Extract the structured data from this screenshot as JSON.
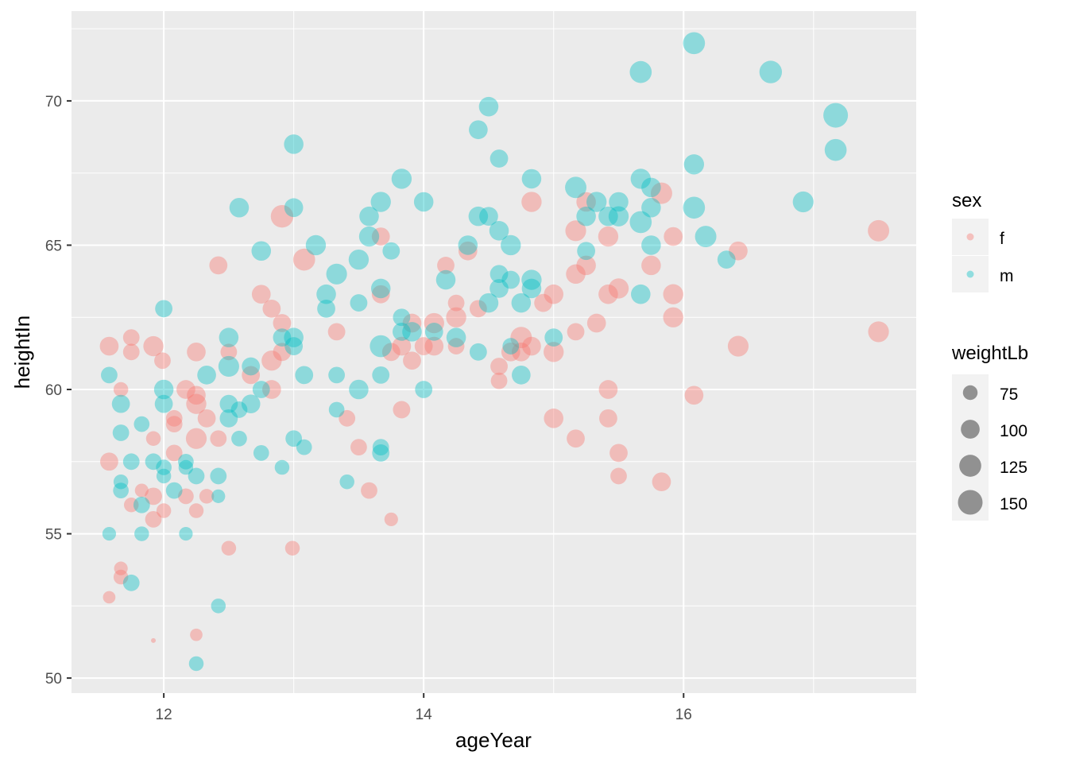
{
  "chart_data": {
    "type": "scatter",
    "xlabel": "ageYear",
    "ylabel": "heightIn",
    "xlim": [
      11.29,
      17.79
    ],
    "ylim": [
      49.48,
      73.11
    ],
    "x_ticks": [
      12,
      14,
      16
    ],
    "y_ticks": [
      50,
      55,
      60,
      65,
      70
    ],
    "grid": true,
    "legend_placement": "right",
    "color_legend": {
      "title": "sex",
      "entries": [
        {
          "label": "f",
          "color": "#F8766D"
        },
        {
          "label": "m",
          "color": "#00BFC4"
        }
      ]
    },
    "size_legend": {
      "title": "weightLb",
      "entries": [
        "75",
        "100",
        "125",
        "150"
      ],
      "values": [
        75,
        100,
        125,
        150
      ]
    },
    "point_alpha": 0.4,
    "columns": [
      "ageYear",
      "heightIn",
      "weightLb",
      "sex"
    ],
    "points": [
      [
        11.58,
        61.5,
        100,
        "f"
      ],
      [
        11.75,
        61.8,
        85,
        "f"
      ],
      [
        11.75,
        61.3,
        85,
        "f"
      ],
      [
        11.92,
        61.5,
        110,
        "f"
      ],
      [
        11.99,
        61.0,
        85,
        "f"
      ],
      [
        11.67,
        60.0,
        75,
        "f"
      ],
      [
        11.58,
        57.5,
        95,
        "f"
      ],
      [
        11.75,
        56.0,
        75,
        "f"
      ],
      [
        11.83,
        56.5,
        70,
        "f"
      ],
      [
        11.92,
        58.3,
        75,
        "f"
      ],
      [
        11.92,
        56.3,
        90,
        "f"
      ],
      [
        11.92,
        55.5,
        85,
        "f"
      ],
      [
        12.0,
        55.8,
        75,
        "f"
      ],
      [
        11.67,
        53.8,
        70,
        "f"
      ],
      [
        11.67,
        53.5,
        75,
        "f"
      ],
      [
        11.58,
        52.8,
        65,
        "f"
      ],
      [
        11.92,
        51.3,
        50,
        "f"
      ],
      [
        12.25,
        51.5,
        65,
        "f"
      ],
      [
        12.5,
        54.5,
        75,
        "f"
      ],
      [
        12.99,
        54.5,
        75,
        "f"
      ],
      [
        13.75,
        55.5,
        70,
        "f"
      ],
      [
        12.08,
        57.8,
        85,
        "f"
      ],
      [
        12.08,
        59.0,
        85,
        "f"
      ],
      [
        12.08,
        58.8,
        85,
        "f"
      ],
      [
        12.17,
        60.0,
        100,
        "f"
      ],
      [
        12.25,
        59.8,
        100,
        "f"
      ],
      [
        12.25,
        59.5,
        110,
        "f"
      ],
      [
        12.25,
        58.3,
        115,
        "f"
      ],
      [
        12.33,
        59.0,
        95,
        "f"
      ],
      [
        12.17,
        56.3,
        80,
        "f"
      ],
      [
        12.25,
        55.8,
        75,
        "f"
      ],
      [
        12.33,
        56.3,
        75,
        "f"
      ],
      [
        12.25,
        61.3,
        100,
        "f"
      ],
      [
        12.42,
        64.3,
        95,
        "f"
      ],
      [
        12.42,
        58.3,
        85,
        "f"
      ],
      [
        12.5,
        61.3,
        85,
        "f"
      ],
      [
        12.67,
        60.5,
        95,
        "f"
      ],
      [
        12.75,
        63.3,
        100,
        "f"
      ],
      [
        12.83,
        62.8,
        95,
        "f"
      ],
      [
        12.83,
        61.0,
        110,
        "f"
      ],
      [
        12.83,
        60.0,
        100,
        "f"
      ],
      [
        12.91,
        62.3,
        95,
        "f"
      ],
      [
        12.91,
        61.3,
        95,
        "f"
      ],
      [
        12.91,
        66.0,
        130,
        "f"
      ],
      [
        13.08,
        64.5,
        125,
        "f"
      ],
      [
        13.33,
        62.0,
        90,
        "f"
      ],
      [
        13.41,
        59.0,
        85,
        "f"
      ],
      [
        13.5,
        58.0,
        85,
        "f"
      ],
      [
        13.58,
        56.5,
        85,
        "f"
      ],
      [
        13.67,
        65.3,
        95,
        "f"
      ],
      [
        13.67,
        63.3,
        95,
        "f"
      ],
      [
        13.75,
        61.3,
        95,
        "f"
      ],
      [
        13.83,
        59.3,
        90,
        "f"
      ],
      [
        13.83,
        61.5,
        100,
        "f"
      ],
      [
        13.91,
        62.3,
        100,
        "f"
      ],
      [
        13.91,
        61.0,
        95,
        "f"
      ],
      [
        14.0,
        61.5,
        95,
        "f"
      ],
      [
        14.08,
        62.3,
        110,
        "f"
      ],
      [
        14.08,
        61.5,
        100,
        "f"
      ],
      [
        14.17,
        64.3,
        90,
        "f"
      ],
      [
        14.25,
        63.0,
        85,
        "f"
      ],
      [
        14.25,
        62.5,
        110,
        "f"
      ],
      [
        14.25,
        61.5,
        85,
        "f"
      ],
      [
        14.34,
        64.8,
        100,
        "f"
      ],
      [
        14.42,
        62.8,
        90,
        "f"
      ],
      [
        14.58,
        60.8,
        90,
        "f"
      ],
      [
        14.58,
        60.3,
        85,
        "f"
      ],
      [
        14.67,
        61.3,
        100,
        "f"
      ],
      [
        14.75,
        61.8,
        120,
        "f"
      ],
      [
        14.75,
        61.3,
        100,
        "f"
      ],
      [
        14.83,
        61.5,
        100,
        "f"
      ],
      [
        14.83,
        66.5,
        110,
        "f"
      ],
      [
        14.92,
        63.0,
        95,
        "f"
      ],
      [
        15.0,
        63.3,
        105,
        "f"
      ],
      [
        15.0,
        61.3,
        110,
        "f"
      ],
      [
        15.0,
        59.0,
        105,
        "f"
      ],
      [
        15.17,
        62.0,
        90,
        "f"
      ],
      [
        15.17,
        58.3,
        95,
        "f"
      ],
      [
        15.17,
        65.5,
        115,
        "f"
      ],
      [
        15.17,
        64.0,
        105,
        "f"
      ],
      [
        15.25,
        64.3,
        105,
        "f"
      ],
      [
        15.25,
        66.5,
        105,
        "f"
      ],
      [
        15.33,
        62.3,
        100,
        "f"
      ],
      [
        15.42,
        65.3,
        110,
        "f"
      ],
      [
        15.42,
        63.3,
        105,
        "f"
      ],
      [
        15.42,
        60.0,
        100,
        "f"
      ],
      [
        15.42,
        59.0,
        95,
        "f"
      ],
      [
        15.5,
        57.8,
        95,
        "f"
      ],
      [
        15.5,
        57.0,
        85,
        "f"
      ],
      [
        15.5,
        63.5,
        110,
        "f"
      ],
      [
        15.75,
        64.3,
        105,
        "f"
      ],
      [
        15.83,
        66.8,
        120,
        "f"
      ],
      [
        15.83,
        56.8,
        100,
        "f"
      ],
      [
        15.92,
        65.3,
        100,
        "f"
      ],
      [
        15.92,
        63.3,
        110,
        "f"
      ],
      [
        15.92,
        62.5,
        110,
        "f"
      ],
      [
        16.08,
        59.8,
        100,
        "f"
      ],
      [
        16.42,
        64.8,
        100,
        "f"
      ],
      [
        16.42,
        61.5,
        115,
        "f"
      ],
      [
        17.5,
        65.5,
        120,
        "f"
      ],
      [
        17.5,
        62.0,
        115,
        "f"
      ],
      [
        11.58,
        60.5,
        85,
        "m"
      ],
      [
        11.67,
        59.5,
        95,
        "m"
      ],
      [
        11.67,
        58.5,
        85,
        "m"
      ],
      [
        11.67,
        56.8,
        75,
        "m"
      ],
      [
        11.67,
        56.5,
        80,
        "m"
      ],
      [
        11.58,
        55.0,
        70,
        "m"
      ],
      [
        11.75,
        57.5,
        85,
        "m"
      ],
      [
        11.75,
        53.3,
        85,
        "m"
      ],
      [
        11.83,
        58.8,
        80,
        "m"
      ],
      [
        11.83,
        56.0,
        85,
        "m"
      ],
      [
        11.83,
        55.0,
        75,
        "m"
      ],
      [
        11.92,
        57.5,
        85,
        "m"
      ],
      [
        12.0,
        62.8,
        90,
        "m"
      ],
      [
        12.0,
        60.0,
        105,
        "m"
      ],
      [
        12.0,
        59.5,
        95,
        "m"
      ],
      [
        12.0,
        57.3,
        80,
        "m"
      ],
      [
        12.0,
        57.0,
        75,
        "m"
      ],
      [
        12.08,
        56.5,
        85,
        "m"
      ],
      [
        12.17,
        57.5,
        80,
        "m"
      ],
      [
        12.17,
        57.3,
        75,
        "m"
      ],
      [
        12.17,
        55.0,
        70,
        "m"
      ],
      [
        12.25,
        57.0,
        85,
        "m"
      ],
      [
        12.25,
        50.5,
        75,
        "m"
      ],
      [
        12.33,
        60.5,
        100,
        "m"
      ],
      [
        12.42,
        57.0,
        85,
        "m"
      ],
      [
        12.42,
        56.3,
        70,
        "m"
      ],
      [
        12.42,
        52.5,
        75,
        "m"
      ],
      [
        12.5,
        61.8,
        105,
        "m"
      ],
      [
        12.5,
        60.8,
        115,
        "m"
      ],
      [
        12.5,
        59.5,
        95,
        "m"
      ],
      [
        12.5,
        59.0,
        95,
        "m"
      ],
      [
        12.58,
        66.3,
        105,
        "m"
      ],
      [
        12.58,
        59.3,
        85,
        "m"
      ],
      [
        12.58,
        58.3,
        80,
        "m"
      ],
      [
        12.67,
        60.8,
        95,
        "m"
      ],
      [
        12.67,
        59.5,
        100,
        "m"
      ],
      [
        12.75,
        64.8,
        105,
        "m"
      ],
      [
        12.75,
        60.0,
        90,
        "m"
      ],
      [
        12.75,
        57.8,
        80,
        "m"
      ],
      [
        12.91,
        57.3,
        75,
        "m"
      ],
      [
        12.91,
        61.8,
        95,
        "m"
      ],
      [
        13.0,
        68.5,
        105,
        "m"
      ],
      [
        13.0,
        66.3,
        100,
        "m"
      ],
      [
        13.0,
        61.8,
        105,
        "m"
      ],
      [
        13.0,
        61.5,
        95,
        "m"
      ],
      [
        13.0,
        58.3,
        85,
        "m"
      ],
      [
        13.08,
        60.5,
        95,
        "m"
      ],
      [
        13.08,
        58.0,
        80,
        "m"
      ],
      [
        13.17,
        65.0,
        110,
        "m"
      ],
      [
        13.25,
        63.3,
        105,
        "m"
      ],
      [
        13.25,
        62.8,
        95,
        "m"
      ],
      [
        13.33,
        64.0,
        115,
        "m"
      ],
      [
        13.33,
        60.5,
        85,
        "m"
      ],
      [
        13.33,
        59.3,
        80,
        "m"
      ],
      [
        13.41,
        56.8,
        75,
        "m"
      ],
      [
        13.5,
        64.5,
        110,
        "m"
      ],
      [
        13.5,
        63.0,
        90,
        "m"
      ],
      [
        13.5,
        60.0,
        105,
        "m"
      ],
      [
        13.58,
        66.0,
        105,
        "m"
      ],
      [
        13.58,
        65.3,
        110,
        "m"
      ],
      [
        13.67,
        66.5,
        110,
        "m"
      ],
      [
        13.67,
        63.5,
        105,
        "m"
      ],
      [
        13.67,
        61.5,
        125,
        "m"
      ],
      [
        13.67,
        60.5,
        90,
        "m"
      ],
      [
        13.67,
        58.0,
        85,
        "m"
      ],
      [
        13.67,
        57.8,
        90,
        "m"
      ],
      [
        13.75,
        64.8,
        90,
        "m"
      ],
      [
        13.83,
        67.3,
        110,
        "m"
      ],
      [
        13.83,
        62.5,
        90,
        "m"
      ],
      [
        13.83,
        62.0,
        95,
        "m"
      ],
      [
        13.91,
        62.0,
        105,
        "m"
      ],
      [
        14.0,
        66.5,
        105,
        "m"
      ],
      [
        14.0,
        60.0,
        90,
        "m"
      ],
      [
        14.08,
        62.0,
        95,
        "m"
      ],
      [
        14.17,
        63.8,
        105,
        "m"
      ],
      [
        14.25,
        61.8,
        105,
        "m"
      ],
      [
        14.34,
        65.0,
        105,
        "m"
      ],
      [
        14.42,
        69.0,
        100,
        "m"
      ],
      [
        14.42,
        66.0,
        105,
        "m"
      ],
      [
        14.42,
        61.3,
        90,
        "m"
      ],
      [
        14.5,
        69.8,
        105,
        "m"
      ],
      [
        14.5,
        66.0,
        100,
        "m"
      ],
      [
        14.5,
        63.0,
        105,
        "m"
      ],
      [
        14.58,
        68.0,
        95,
        "m"
      ],
      [
        14.58,
        65.5,
        105,
        "m"
      ],
      [
        14.58,
        64.0,
        95,
        "m"
      ],
      [
        14.58,
        63.5,
        100,
        "m"
      ],
      [
        14.67,
        65.0,
        110,
        "m"
      ],
      [
        14.67,
        63.8,
        95,
        "m"
      ],
      [
        14.67,
        61.5,
        85,
        "m"
      ],
      [
        14.75,
        63.0,
        105,
        "m"
      ],
      [
        14.75,
        60.5,
        100,
        "m"
      ],
      [
        14.83,
        67.3,
        105,
        "m"
      ],
      [
        14.83,
        63.8,
        110,
        "m"
      ],
      [
        14.83,
        63.5,
        105,
        "m"
      ],
      [
        15.0,
        61.8,
        95,
        "m"
      ],
      [
        15.17,
        67.0,
        120,
        "m"
      ],
      [
        15.25,
        66.0,
        105,
        "m"
      ],
      [
        15.25,
        64.8,
        95,
        "m"
      ],
      [
        15.33,
        66.5,
        110,
        "m"
      ],
      [
        15.42,
        66.0,
        105,
        "m"
      ],
      [
        15.5,
        66.5,
        105,
        "m"
      ],
      [
        15.5,
        66.0,
        110,
        "m"
      ],
      [
        15.67,
        71.0,
        125,
        "m"
      ],
      [
        15.67,
        67.3,
        110,
        "m"
      ],
      [
        15.67,
        65.8,
        125,
        "m"
      ],
      [
        15.67,
        63.3,
        105,
        "m"
      ],
      [
        15.75,
        67.0,
        105,
        "m"
      ],
      [
        15.75,
        66.3,
        105,
        "m"
      ],
      [
        15.75,
        65.0,
        105,
        "m"
      ],
      [
        16.08,
        72.0,
        125,
        "m"
      ],
      [
        16.08,
        67.8,
        110,
        "m"
      ],
      [
        16.08,
        66.3,
        125,
        "m"
      ],
      [
        16.17,
        65.3,
        120,
        "m"
      ],
      [
        16.33,
        64.5,
        95,
        "m"
      ],
      [
        16.67,
        71.0,
        130,
        "m"
      ],
      [
        16.92,
        66.5,
        115,
        "m"
      ],
      [
        17.17,
        69.5,
        150,
        "m"
      ],
      [
        17.17,
        68.3,
        125,
        "m"
      ]
    ]
  }
}
